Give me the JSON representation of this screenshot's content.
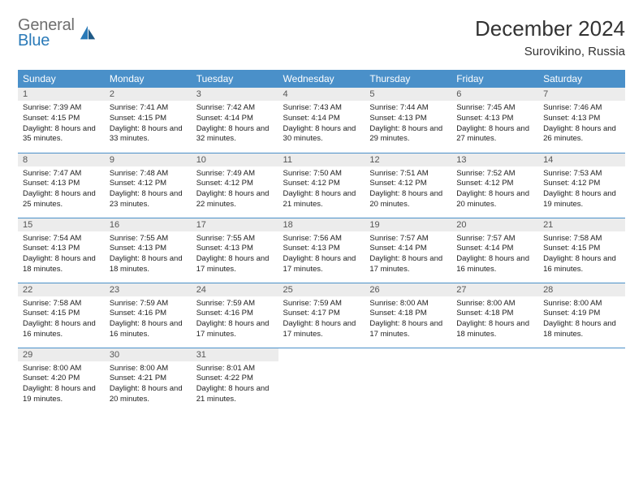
{
  "logo": {
    "line1": "General",
    "line2": "Blue"
  },
  "header": {
    "month_year": "December 2024",
    "location": "Surovikino, Russia"
  },
  "colors": {
    "header_bg": "#4a90c9",
    "header_text": "#ffffff",
    "daynum_bg": "#ececec",
    "daynum_text": "#555555",
    "row_divider": "#4a90c9",
    "logo_gray": "#6e6e6e",
    "logo_blue": "#2a7ab8"
  },
  "weekdays": [
    "Sunday",
    "Monday",
    "Tuesday",
    "Wednesday",
    "Thursday",
    "Friday",
    "Saturday"
  ],
  "weeks": [
    [
      {
        "n": "1",
        "sr": "7:39 AM",
        "ss": "4:15 PM",
        "dl": "Daylight: 8 hours and 35 minutes."
      },
      {
        "n": "2",
        "sr": "7:41 AM",
        "ss": "4:15 PM",
        "dl": "Daylight: 8 hours and 33 minutes."
      },
      {
        "n": "3",
        "sr": "7:42 AM",
        "ss": "4:14 PM",
        "dl": "Daylight: 8 hours and 32 minutes."
      },
      {
        "n": "4",
        "sr": "7:43 AM",
        "ss": "4:14 PM",
        "dl": "Daylight: 8 hours and 30 minutes."
      },
      {
        "n": "5",
        "sr": "7:44 AM",
        "ss": "4:13 PM",
        "dl": "Daylight: 8 hours and 29 minutes."
      },
      {
        "n": "6",
        "sr": "7:45 AM",
        "ss": "4:13 PM",
        "dl": "Daylight: 8 hours and 27 minutes."
      },
      {
        "n": "7",
        "sr": "7:46 AM",
        "ss": "4:13 PM",
        "dl": "Daylight: 8 hours and 26 minutes."
      }
    ],
    [
      {
        "n": "8",
        "sr": "7:47 AM",
        "ss": "4:13 PM",
        "dl": "Daylight: 8 hours and 25 minutes."
      },
      {
        "n": "9",
        "sr": "7:48 AM",
        "ss": "4:12 PM",
        "dl": "Daylight: 8 hours and 23 minutes."
      },
      {
        "n": "10",
        "sr": "7:49 AM",
        "ss": "4:12 PM",
        "dl": "Daylight: 8 hours and 22 minutes."
      },
      {
        "n": "11",
        "sr": "7:50 AM",
        "ss": "4:12 PM",
        "dl": "Daylight: 8 hours and 21 minutes."
      },
      {
        "n": "12",
        "sr": "7:51 AM",
        "ss": "4:12 PM",
        "dl": "Daylight: 8 hours and 20 minutes."
      },
      {
        "n": "13",
        "sr": "7:52 AM",
        "ss": "4:12 PM",
        "dl": "Daylight: 8 hours and 20 minutes."
      },
      {
        "n": "14",
        "sr": "7:53 AM",
        "ss": "4:12 PM",
        "dl": "Daylight: 8 hours and 19 minutes."
      }
    ],
    [
      {
        "n": "15",
        "sr": "7:54 AM",
        "ss": "4:13 PM",
        "dl": "Daylight: 8 hours and 18 minutes."
      },
      {
        "n": "16",
        "sr": "7:55 AM",
        "ss": "4:13 PM",
        "dl": "Daylight: 8 hours and 18 minutes."
      },
      {
        "n": "17",
        "sr": "7:55 AM",
        "ss": "4:13 PM",
        "dl": "Daylight: 8 hours and 17 minutes."
      },
      {
        "n": "18",
        "sr": "7:56 AM",
        "ss": "4:13 PM",
        "dl": "Daylight: 8 hours and 17 minutes."
      },
      {
        "n": "19",
        "sr": "7:57 AM",
        "ss": "4:14 PM",
        "dl": "Daylight: 8 hours and 17 minutes."
      },
      {
        "n": "20",
        "sr": "7:57 AM",
        "ss": "4:14 PM",
        "dl": "Daylight: 8 hours and 16 minutes."
      },
      {
        "n": "21",
        "sr": "7:58 AM",
        "ss": "4:15 PM",
        "dl": "Daylight: 8 hours and 16 minutes."
      }
    ],
    [
      {
        "n": "22",
        "sr": "7:58 AM",
        "ss": "4:15 PM",
        "dl": "Daylight: 8 hours and 16 minutes."
      },
      {
        "n": "23",
        "sr": "7:59 AM",
        "ss": "4:16 PM",
        "dl": "Daylight: 8 hours and 16 minutes."
      },
      {
        "n": "24",
        "sr": "7:59 AM",
        "ss": "4:16 PM",
        "dl": "Daylight: 8 hours and 17 minutes."
      },
      {
        "n": "25",
        "sr": "7:59 AM",
        "ss": "4:17 PM",
        "dl": "Daylight: 8 hours and 17 minutes."
      },
      {
        "n": "26",
        "sr": "8:00 AM",
        "ss": "4:18 PM",
        "dl": "Daylight: 8 hours and 17 minutes."
      },
      {
        "n": "27",
        "sr": "8:00 AM",
        "ss": "4:18 PM",
        "dl": "Daylight: 8 hours and 18 minutes."
      },
      {
        "n": "28",
        "sr": "8:00 AM",
        "ss": "4:19 PM",
        "dl": "Daylight: 8 hours and 18 minutes."
      }
    ],
    [
      {
        "n": "29",
        "sr": "8:00 AM",
        "ss": "4:20 PM",
        "dl": "Daylight: 8 hours and 19 minutes."
      },
      {
        "n": "30",
        "sr": "8:00 AM",
        "ss": "4:21 PM",
        "dl": "Daylight: 8 hours and 20 minutes."
      },
      {
        "n": "31",
        "sr": "8:01 AM",
        "ss": "4:22 PM",
        "dl": "Daylight: 8 hours and 21 minutes."
      },
      null,
      null,
      null,
      null
    ]
  ]
}
